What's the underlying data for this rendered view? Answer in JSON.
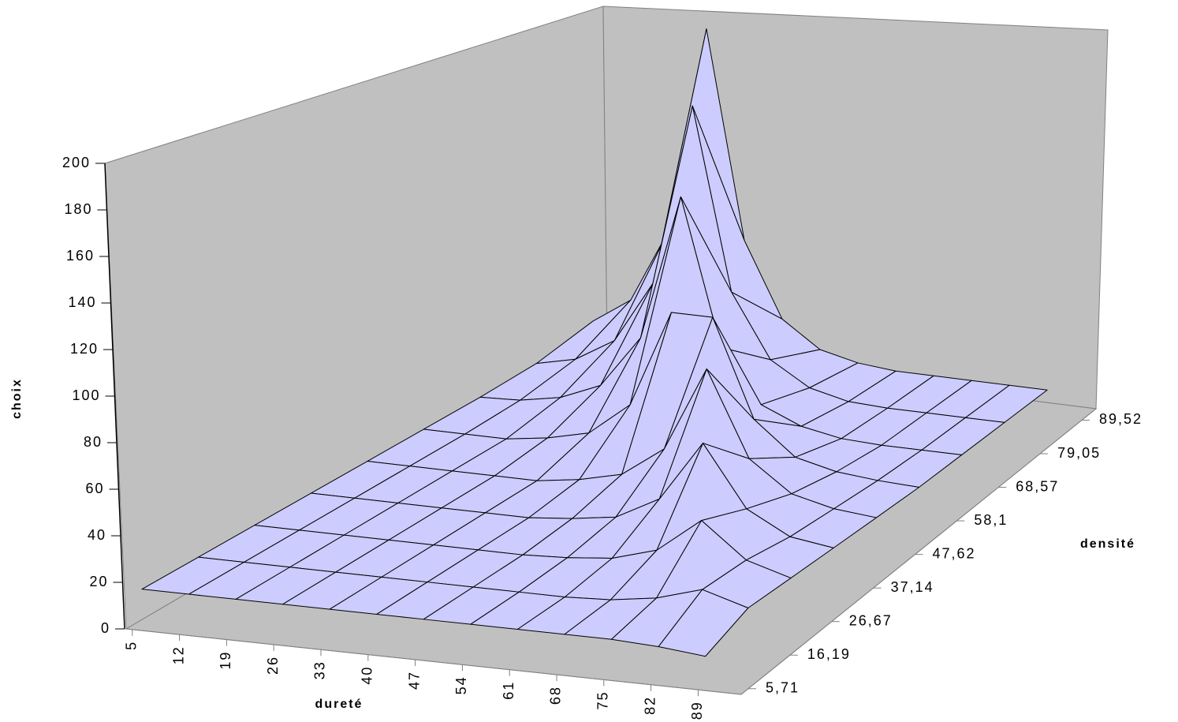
{
  "chart_data": {
    "type": "surface",
    "x_label": "dureté",
    "y_label": "densité",
    "z_label": "choix",
    "categories": [
      5,
      12,
      19,
      26,
      33,
      40,
      47,
      54,
      61,
      68,
      75,
      82,
      89
    ],
    "series": [
      {
        "name": "5,71",
        "values": [
          15,
          15,
          15,
          15,
          15,
          15,
          15,
          15,
          15,
          15,
          15,
          14,
          12
        ]
      },
      {
        "name": "16,19",
        "values": [
          15,
          15,
          15,
          15,
          15,
          15,
          15,
          15,
          15,
          16,
          19,
          25,
          19
        ]
      },
      {
        "name": "26,67",
        "values": [
          15,
          15,
          15,
          15,
          15,
          15,
          15,
          16,
          18,
          24,
          40,
          24,
          18
        ]
      },
      {
        "name": "37,14",
        "values": [
          15,
          15,
          15,
          15,
          15,
          15,
          17,
          20,
          31,
          60,
          31,
          20,
          17
        ]
      },
      {
        "name": "47,62",
        "values": [
          15,
          15,
          15,
          15,
          15,
          18,
          23,
          38,
          80,
          38,
          23,
          18,
          16
        ]
      },
      {
        "name": "58,1",
        "values": [
          15,
          15,
          15,
          18,
          23,
          40,
          90,
          90,
          40,
          23,
          18,
          16,
          15
        ]
      },
      {
        "name": "68,57",
        "values": [
          15,
          16,
          20,
          29,
          57,
          135,
          57,
          29,
          20,
          16,
          15,
          15,
          15
        ]
      },
      {
        "name": "79,05",
        "values": [
          16,
          21,
          34,
          69,
          170,
          69,
          34,
          21,
          16,
          15,
          15,
          15,
          15
        ]
      },
      {
        "name": "89,52",
        "values": [
          22,
          37,
          80,
          200,
          80,
          37,
          22,
          17,
          15,
          15,
          15,
          15,
          15
        ]
      }
    ],
    "color": "#ccccff",
    "zlim": [
      0,
      200
    ],
    "zticks": [
      0,
      20,
      40,
      60,
      80,
      100,
      120,
      140,
      160,
      180,
      200
    ]
  }
}
